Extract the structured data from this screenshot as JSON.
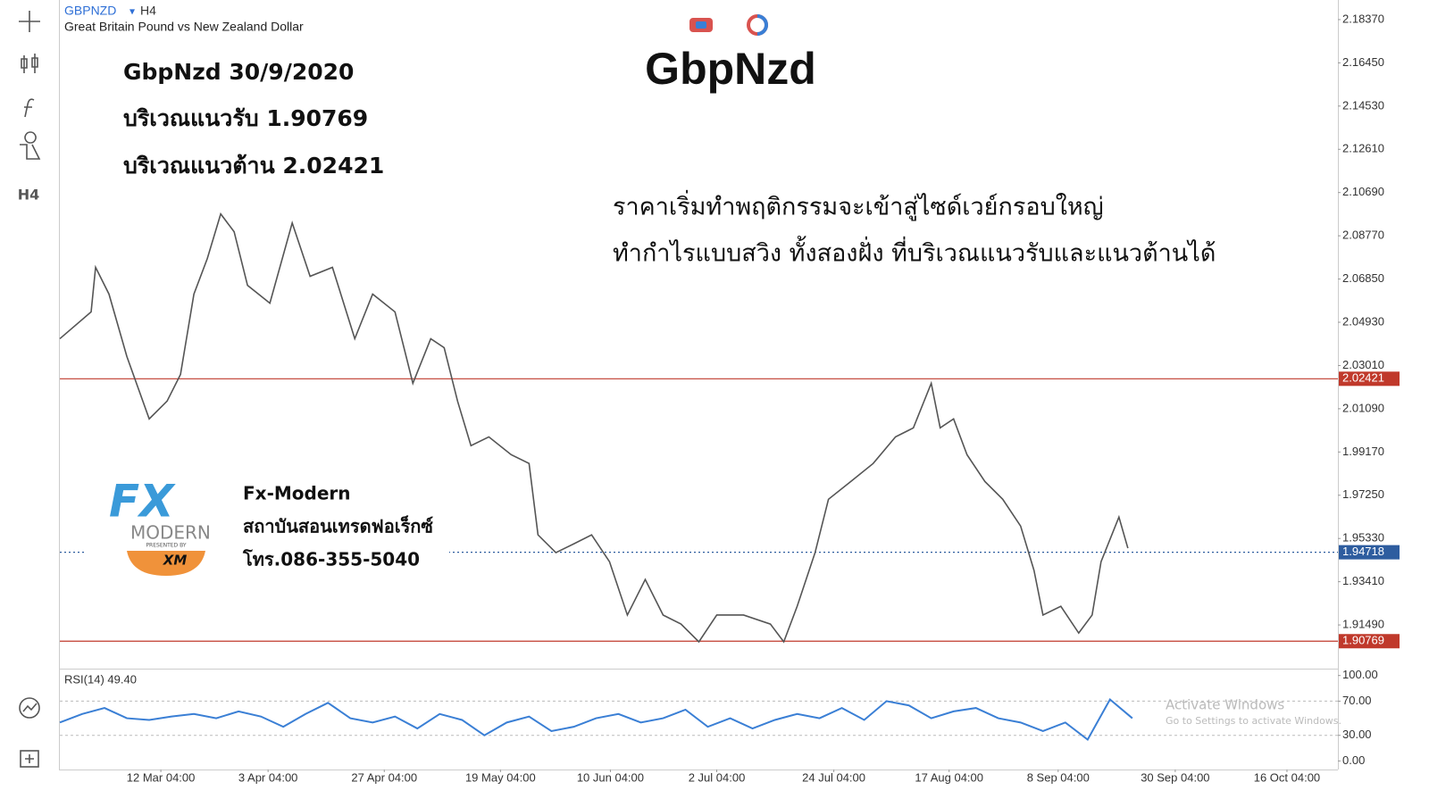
{
  "header": {
    "symbol": "GBPNZD",
    "timeframe": "H4",
    "description": "Great Britain Pound vs New Zealand Dollar"
  },
  "toolbar": {
    "timeframe": "H4"
  },
  "annotations": {
    "date_title": "GbpNzd 30/9/2020",
    "support": "บริเวณแนวรับ 1.90769",
    "resistance": "บริเวณแนวต้าน 2.02421",
    "big_title": "GbpNzd",
    "note_line1": "ราคาเริ่มทำพฤติกรรมจะเข้าสู่ไซด์เวย์กรอบใหญ่",
    "note_line2": "ทำกำไรแบบสวิง ทั้งสองฝั่ง ที่บริเวณแนวรับและแนวต้านได้"
  },
  "logo": {
    "mark": "FX",
    "word": "MODERN",
    "presented": "PRESENTED BY",
    "broker": "XM",
    "name": "Fx-Modern",
    "institute": "สถาบันสอนเทรดฟอเร็กซ์",
    "phone": "โทร.086-355-5040"
  },
  "watermark": {
    "line1": "Activate Windows",
    "line2": "Go to Settings to activate Windows."
  },
  "chart_data": [
    {
      "type": "line",
      "color": "#555555",
      "x": [
        0,
        7,
        8,
        11,
        15,
        20,
        24,
        27,
        30,
        33,
        36,
        39,
        42,
        47,
        52,
        56,
        61,
        66,
        70,
        75,
        79,
        83,
        86,
        89,
        92,
        96,
        101,
        105,
        107,
        111,
        115,
        119,
        123,
        127,
        131,
        135,
        139,
        143,
        147,
        153,
        159,
        162,
        165,
        169,
        172,
        177,
        182,
        187,
        191,
        195,
        197,
        200,
        203,
        207,
        211,
        215,
        218,
        220,
        224,
        228,
        231,
        233,
        237,
        239
      ],
      "values": [
        2.042,
        2.0539,
        2.0737,
        2.0618,
        2.0341,
        2.0064,
        2.0143,
        2.0261,
        2.0618,
        2.0776,
        2.0974,
        2.0895,
        2.0657,
        2.0578,
        2.0934,
        2.0697,
        2.0737,
        2.042,
        2.0618,
        2.0539,
        2.0222,
        2.042,
        2.038,
        2.0143,
        1.9945,
        1.9984,
        1.9905,
        1.9866,
        1.9549,
        1.947,
        1.9509,
        1.9549,
        1.943,
        1.9193,
        1.9351,
        1.9193,
        1.9153,
        1.9074,
        1.9193,
        1.9193,
        1.9153,
        1.9074,
        1.9232,
        1.947,
        1.9707,
        1.9786,
        1.9866,
        1.9984,
        2.0024,
        2.0222,
        2.0024,
        2.0064,
        1.9905,
        1.9786,
        1.9707,
        1.9588,
        1.9391,
        1.9193,
        1.9232,
        1.9113,
        1.9193,
        1.943,
        1.9628,
        1.949
      ],
      "xlim": [
        0,
        286
      ],
      "ylim": [
        1.8959,
        2.1924
      ],
      "yticks": [
        {
          "value": 2.1837,
          "label": "2.18370"
        },
        {
          "value": 2.1645,
          "label": "2.16450"
        },
        {
          "value": 2.1453,
          "label": "2.14530"
        },
        {
          "value": 2.1261,
          "label": "2.12610"
        },
        {
          "value": 2.1069,
          "label": "2.10690"
        },
        {
          "value": 2.0877,
          "label": "2.08770"
        },
        {
          "value": 2.0685,
          "label": "2.06850"
        },
        {
          "value": 2.0493,
          "label": "2.04930"
        },
        {
          "value": 2.0301,
          "label": "2.03010"
        },
        {
          "value": 2.0109,
          "label": "2.01090"
        },
        {
          "value": 1.9917,
          "label": "1.99170"
        },
        {
          "value": 1.9725,
          "label": "1.97250"
        },
        {
          "value": 1.9533,
          "label": "1.95330"
        },
        {
          "value": 1.9341,
          "label": "1.93410"
        },
        {
          "value": 1.9149,
          "label": "1.91490"
        }
      ],
      "levels": [
        {
          "value": 2.02421,
          "color": "#c0392b",
          "style": "solid"
        },
        {
          "value": 1.94718,
          "color": "#2e5d9f",
          "style": "dotted"
        },
        {
          "value": 1.90769,
          "color": "#c0392b",
          "style": "solid"
        }
      ],
      "xticks": [
        {
          "value": 22.6,
          "label": "12 Mar 04:00"
        },
        {
          "value": 46.6,
          "label": "3 Apr 04:00"
        },
        {
          "value": 72.6,
          "label": "27 Apr 04:00"
        },
        {
          "value": 98.6,
          "label": "19 May 04:00"
        },
        {
          "value": 123.2,
          "label": "10 Jun 04:00"
        },
        {
          "value": 147,
          "label": "2 Jul 04:00"
        },
        {
          "value": 173.2,
          "label": "24 Jul 04:00"
        },
        {
          "value": 199,
          "label": "17 Aug 04:00"
        },
        {
          "value": 223.4,
          "label": "8 Sep 04:00"
        },
        {
          "value": 249.6,
          "label": "30 Sep 04:00"
        },
        {
          "value": 274.6,
          "label": "16 Oct 04:00"
        }
      ]
    },
    {
      "type": "line",
      "title": "RSI(14) 49.40",
      "color": "#3a7fd5",
      "x": [
        0,
        5,
        10,
        15,
        20,
        25,
        30,
        35,
        40,
        45,
        50,
        55,
        60,
        65,
        70,
        75,
        80,
        85,
        90,
        95,
        100,
        105,
        110,
        115,
        120,
        125,
        130,
        135,
        140,
        145,
        150,
        155,
        160,
        165,
        170,
        175,
        180,
        185,
        190,
        195,
        200,
        205,
        210,
        215,
        220,
        225,
        230,
        235,
        240
      ],
      "values": [
        45,
        55,
        62,
        50,
        48,
        52,
        55,
        50,
        58,
        52,
        40,
        55,
        68,
        50,
        45,
        52,
        38,
        55,
        48,
        30,
        45,
        52,
        35,
        40,
        50,
        55,
        45,
        50,
        60,
        40,
        50,
        38,
        48,
        55,
        50,
        62,
        48,
        70,
        65,
        50,
        58,
        62,
        50,
        45,
        35,
        45,
        25,
        72,
        50
      ],
      "xlim": [
        0,
        286
      ],
      "ylim": [
        -10,
        107
      ],
      "yticks": [
        {
          "value": 100,
          "label": "100.00"
        },
        {
          "value": 70,
          "label": "70.00"
        },
        {
          "value": 30,
          "label": "30.00"
        },
        {
          "value": 0,
          "label": "0.00"
        }
      ]
    }
  ]
}
